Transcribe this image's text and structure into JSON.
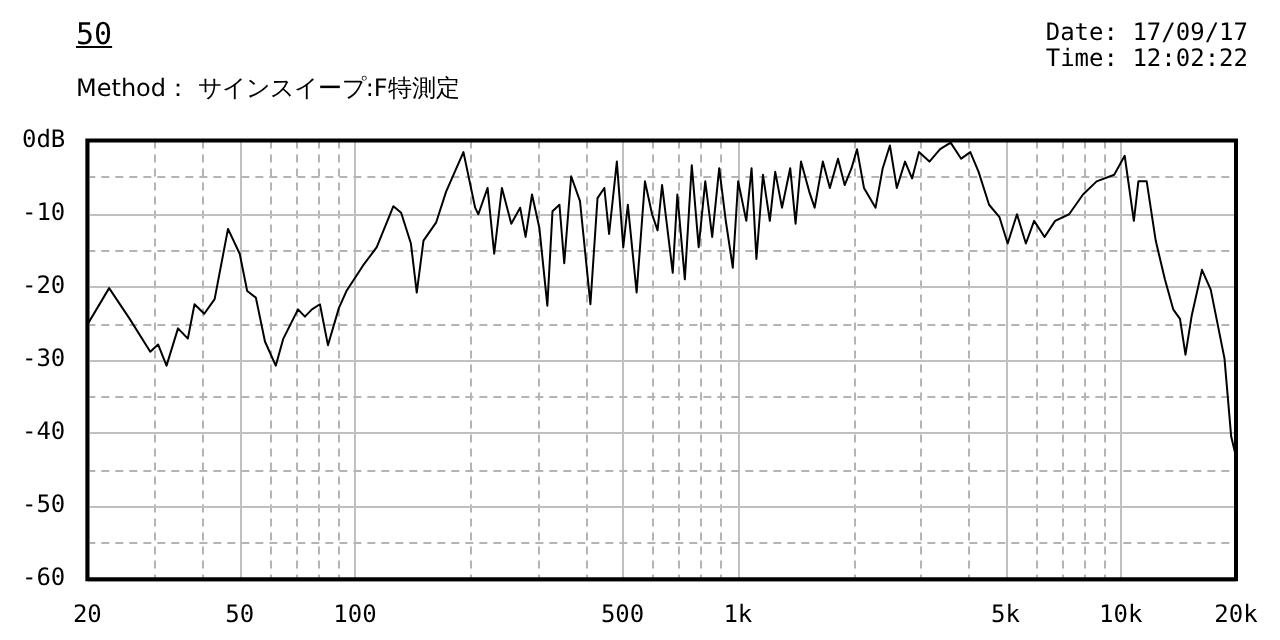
{
  "chart_data": {
    "type": "line",
    "title": "50",
    "subtitle": "Method： サインスイープ:F特測定",
    "annotations": [
      "Date: 17/09/17",
      "Time: 12:02:22"
    ],
    "log": "x",
    "grid": true,
    "marker": "none",
    "line_style": "solid",
    "xlim": [
      20,
      20000
    ],
    "xticks": [
      20,
      {
        "value": 30,
        "label": null
      },
      {
        "value": 40,
        "label": null
      },
      50,
      {
        "value": 60,
        "label": null
      },
      {
        "value": 70,
        "label": null
      },
      {
        "value": 80,
        "label": null
      },
      {
        "value": 90,
        "label": null
      },
      100,
      {
        "value": 200,
        "label": null
      },
      {
        "value": 300,
        "label": null
      },
      {
        "value": 400,
        "label": null
      },
      500,
      {
        "value": 600,
        "label": null
      },
      {
        "value": 700,
        "label": null
      },
      {
        "value": 800,
        "label": null
      },
      {
        "value": 900,
        "label": null
      },
      {
        "value": 1000,
        "label": "1k"
      },
      {
        "value": 2000,
        "label": null
      },
      {
        "value": 3000,
        "label": null
      },
      {
        "value": 4000,
        "label": null
      },
      {
        "value": 5000,
        "label": "5k"
      },
      {
        "value": 6000,
        "label": null
      },
      {
        "value": 7000,
        "label": null
      },
      {
        "value": 8000,
        "label": null
      },
      {
        "value": 9000,
        "label": null
      },
      {
        "value": 10000,
        "label": "10k"
      },
      {
        "value": 20000,
        "label": "20k"
      }
    ],
    "ylim": [
      -60,
      0
    ],
    "yticks": [
      {
        "value": 0,
        "label": "0dB"
      },
      {
        "value": -5,
        "label": null
      },
      -10,
      {
        "value": -15,
        "label": null
      },
      -20,
      {
        "value": -25,
        "label": null
      },
      -30,
      {
        "value": -35,
        "label": null
      },
      -40,
      {
        "value": -45,
        "label": null
      },
      -50,
      {
        "value": -55,
        "label": null
      },
      -60
    ],
    "series": [
      {
        "color": "#000000",
        "x": [
          20,
          22.8,
          25.8,
          29.2,
          30.6,
          32.2,
          34.5,
          36.6,
          38.1,
          40.4,
          43,
          46.6,
          50,
          52.3,
          55.1,
          58.2,
          62.1,
          65,
          71,
          74,
          77.2,
          81,
          85,
          90.8,
          95,
          105,
          114,
          126,
          132,
          140,
          145,
          151,
          163,
          173,
          192,
          206,
          210,
          222,
          231,
          242,
          256,
          270,
          279,
          290,
          303,
          318,
          328,
          342,
          352,
          367,
          387,
          412,
          430,
          448,
          461,
          483,
          502,
          516,
          544,
          572,
          597,
          617,
          634,
          676,
          695,
          727,
          758,
          790,
          822,
          857,
          894,
          930,
          970,
          1002,
          1052,
          1086,
          1118,
          1163,
          1212,
          1252,
          1304,
          1370,
          1415,
          1462,
          1536,
          1587,
          1667,
          1739,
          1826,
          1901,
          1981,
          2047,
          2135,
          2289,
          2390,
          2495,
          2601,
          2733,
          2851,
          2972,
          3165,
          3375,
          3595,
          3830,
          4047,
          4254,
          4530,
          4823,
          5066,
          5358,
          5653,
          5940,
          6325,
          6740,
          7330,
          7970,
          8650,
          9615,
          10240,
          10820,
          11120,
          11690,
          12340,
          13040,
          13710,
          14280,
          14760,
          15330,
          16300,
          17180,
          18660,
          19430,
          19990
        ],
        "values": [
          -25.2,
          -20.2,
          -24.4,
          -28.9,
          -27.9,
          -30.8,
          -25.7,
          -27.1,
          -22.4,
          -23.7,
          -21.7,
          -12.1,
          -15.5,
          -20.6,
          -21.5,
          -27.5,
          -30.8,
          -27.1,
          -23.1,
          -24.1,
          -23.1,
          -22.4,
          -28,
          -22.9,
          -20.6,
          -17.1,
          -14.6,
          -9,
          -9.9,
          -14.1,
          -20.8,
          -13.7,
          -11.2,
          -7,
          -1.6,
          -9.2,
          -10.1,
          -6.5,
          -15.5,
          -6.5,
          -11.4,
          -9.2,
          -13.2,
          -7.4,
          -11.9,
          -22.6,
          -9.7,
          -8.8,
          -16.8,
          -4.9,
          -8.3,
          -22.4,
          -7.9,
          -6.5,
          -12.8,
          -2.9,
          -14.6,
          -8.8,
          -20.8,
          -5.6,
          -10.1,
          -12.3,
          -6.1,
          -18.1,
          -7.4,
          -19,
          -3.4,
          -14.6,
          -5.6,
          -13.2,
          -3.8,
          -11,
          -17.4,
          -5.6,
          -11,
          -3.8,
          -16.2,
          -4.7,
          -11,
          -4.3,
          -9.2,
          -3.8,
          -11.4,
          -2.9,
          -7,
          -9.2,
          -2.9,
          -6.5,
          -2.5,
          -6.1,
          -3.8,
          -1.2,
          -6.5,
          -9.2,
          -3.8,
          -0.7,
          -6.5,
          -2.9,
          -5.2,
          -1.6,
          -2.9,
          -1.2,
          -0.3,
          -2.5,
          -1.6,
          -4.3,
          -8.8,
          -10.5,
          -14.1,
          -10.1,
          -14.1,
          -11,
          -13.2,
          -11,
          -10.1,
          -7.4,
          -5.6,
          -4.7,
          -2.1,
          -11,
          -5.6,
          -5.6,
          -13.7,
          -19,
          -23.1,
          -24.4,
          -29.3,
          -23.9,
          -17.7,
          -20.4,
          -29.8,
          -40.5,
          -43.2
        ]
      }
    ]
  }
}
